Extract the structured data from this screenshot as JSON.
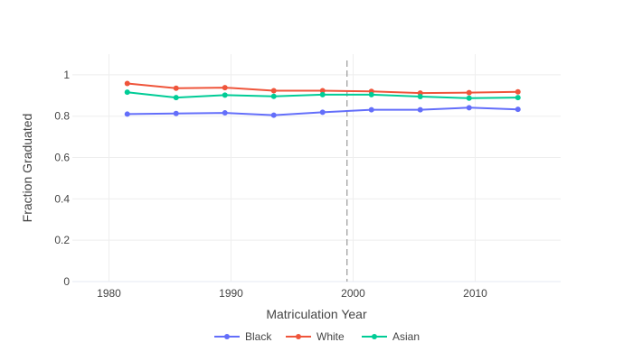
{
  "chart_data": {
    "type": "line",
    "title": "",
    "xlabel": "Matriculation Year",
    "ylabel": "Fraction Graduated",
    "xlim": [
      1977,
      2017
    ],
    "ylim": [
      0,
      1.1
    ],
    "x_ticks": [
      1980,
      1990,
      2000,
      2010
    ],
    "y_ticks": [
      0,
      0.2,
      0.4,
      0.6,
      0.8,
      1
    ],
    "x_tick_labels": [
      "1980",
      "1990",
      "2000",
      "2010"
    ],
    "y_tick_labels": [
      "0",
      "0.2",
      "0.4",
      "0.6",
      "0.8",
      "1"
    ],
    "grid": true,
    "legend_position": "bottom-center",
    "x": [
      1981.5,
      1985.5,
      1989.5,
      1993.5,
      1997.5,
      2001.5,
      2005.5,
      2009.5,
      2013.5
    ],
    "series": [
      {
        "name": "Black",
        "color": "#636efa",
        "values": [
          0.81,
          0.813,
          0.816,
          0.805,
          0.819,
          0.831,
          0.831,
          0.841,
          0.833
        ]
      },
      {
        "name": "White",
        "color": "#ef553b",
        "values": [
          0.958,
          0.935,
          0.938,
          0.923,
          0.923,
          0.92,
          0.912,
          0.914,
          0.918
        ]
      },
      {
        "name": "Asian",
        "color": "#00cc96",
        "values": [
          0.916,
          0.89,
          0.902,
          0.896,
          0.904,
          0.904,
          0.895,
          0.887,
          0.89
        ]
      }
    ],
    "reference_line": {
      "x": 1999.5,
      "style": "dashed",
      "color": "#999999"
    }
  }
}
